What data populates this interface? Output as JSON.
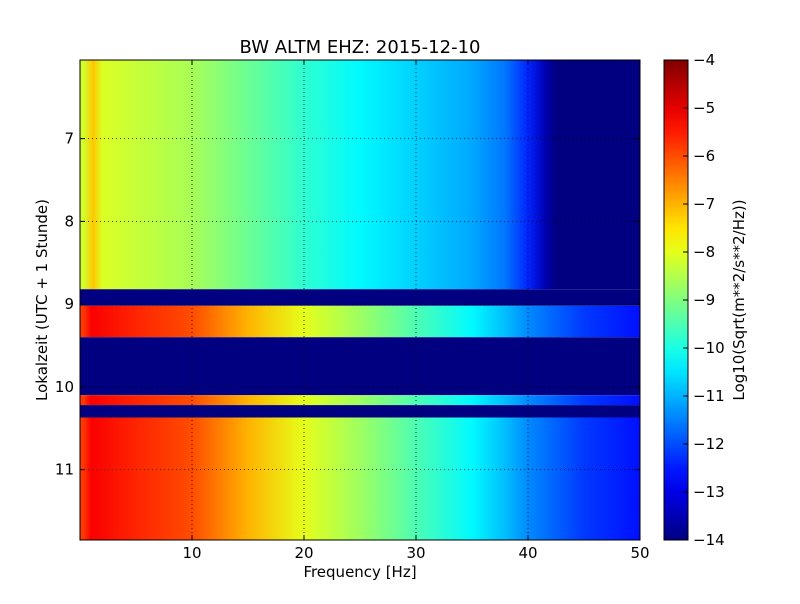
{
  "chart_data": {
    "type": "heatmap",
    "title": "BW ALTM EHZ: 2015-12-10",
    "xlabel": "Frequency [Hz]",
    "ylabel": "Lokalzeit (UTC + 1 Stunde)",
    "xlim": [
      0,
      50
    ],
    "ylim": [
      11.85,
      6.05
    ],
    "y_inverted": true,
    "x_ticks": [
      10,
      20,
      30,
      40,
      50
    ],
    "y_ticks": [
      7,
      8,
      9,
      10,
      11
    ],
    "grid": true,
    "colorbar": {
      "label": "Log10(Sqrt(m**2/s**2/Hz))",
      "min": -14,
      "max": -4,
      "ticks": [
        -4,
        -5,
        -6,
        -7,
        -8,
        -9,
        -10,
        -11,
        -12,
        -13,
        -14
      ],
      "colormap": "jet"
    },
    "bands": [
      {
        "from": 6.05,
        "to": 8.82,
        "kind": "quiet"
      },
      {
        "from": 8.82,
        "to": 9.02,
        "kind": "gap"
      },
      {
        "from": 9.02,
        "to": 9.4,
        "kind": "loud"
      },
      {
        "from": 9.4,
        "to": 10.1,
        "kind": "gap"
      },
      {
        "from": 10.1,
        "to": 10.22,
        "kind": "loud"
      },
      {
        "from": 10.22,
        "to": 10.37,
        "kind": "gap"
      },
      {
        "from": 10.37,
        "to": 11.85,
        "kind": "loud"
      }
    ],
    "profiles": {
      "quiet": [
        [
          0.3,
          -8.2
        ],
        [
          1.2,
          -7.2
        ],
        [
          2,
          -8.1
        ],
        [
          5,
          -8.3
        ],
        [
          10,
          -8.6
        ],
        [
          15,
          -9.2
        ],
        [
          20,
          -9.8
        ],
        [
          25,
          -10.3
        ],
        [
          30,
          -10.7
        ],
        [
          35,
          -11.1
        ],
        [
          38,
          -11.6
        ],
        [
          40,
          -12.4
        ],
        [
          41.5,
          -13.5
        ],
        [
          42.5,
          -14
        ],
        [
          50,
          -14
        ]
      ],
      "loud": [
        [
          0.3,
          -5.8
        ],
        [
          1,
          -5.2
        ],
        [
          5,
          -5.6
        ],
        [
          10,
          -6.0
        ],
        [
          15,
          -7.0
        ],
        [
          20,
          -8.0
        ],
        [
          25,
          -8.7
        ],
        [
          30,
          -9.5
        ],
        [
          35,
          -10.3
        ],
        [
          38,
          -10.9
        ],
        [
          40,
          -11.4
        ],
        [
          45,
          -12.2
        ],
        [
          50,
          -12.6
        ]
      ]
    }
  }
}
